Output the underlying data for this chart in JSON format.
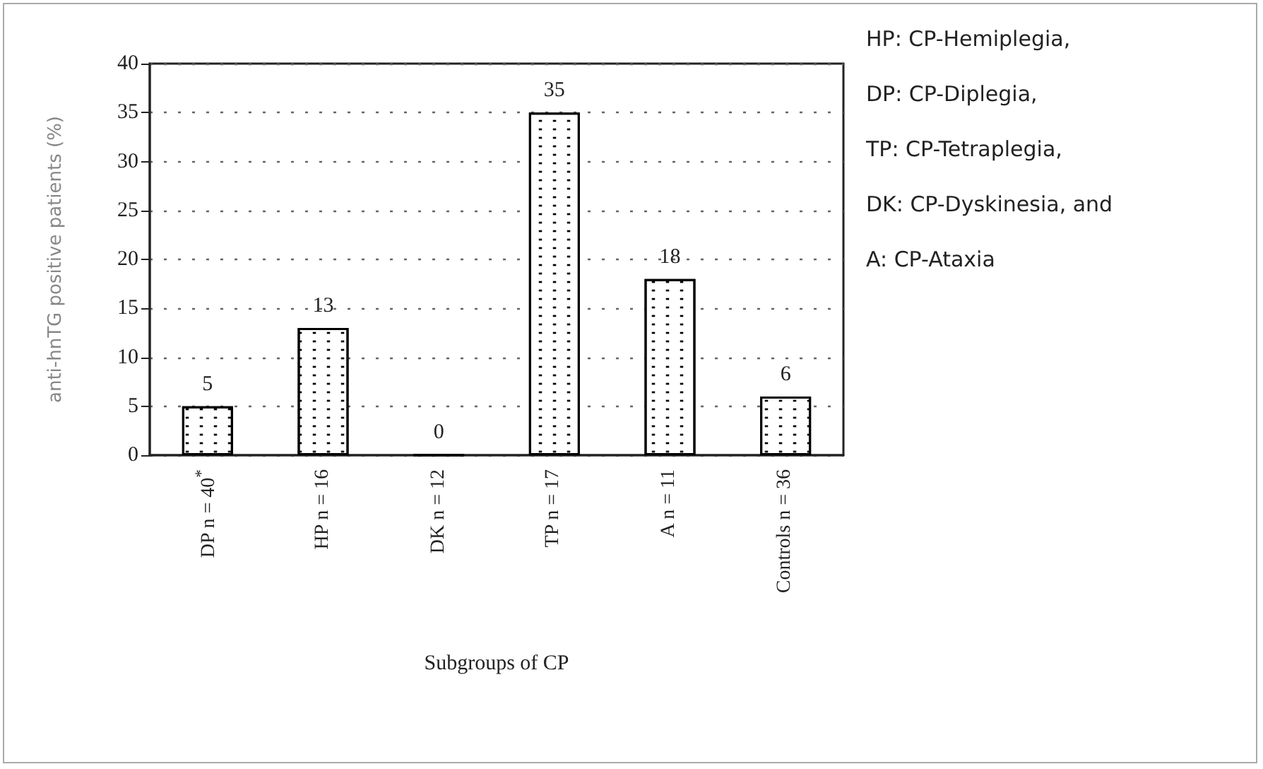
{
  "chart_data": {
    "type": "bar",
    "xlabel": "Subgroups of CP",
    "ylabel": "anti-hnTG positive patients (%)",
    "categories": [
      "DP n = 40$^{*}$",
      "HP n = 16",
      "DK n = 12",
      "TP n = 17",
      "A n = 11",
      "Controls n = 36"
    ],
    "values": [
      5,
      13,
      0,
      35,
      18,
      6
    ],
    "color": "#000000",
    "data_labels": true,
    "ylim": [
      0,
      40
    ],
    "yticks": [
      0,
      5,
      10,
      15,
      20,
      25,
      30,
      35,
      40
    ],
    "grid": "y",
    "annotations": [
      "HP: CP-Hemiplegia,",
      "DP: CP-Diplegia,",
      "TP: CP-Tetraplegia,",
      "DK: CP-Dyskinesia, and",
      "A: CP-Ataxia"
    ]
  }
}
